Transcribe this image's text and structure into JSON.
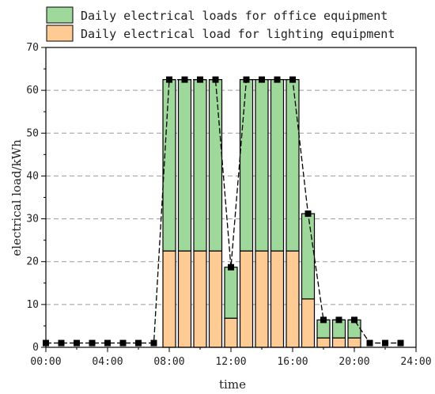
{
  "chart_data": {
    "type": "bar",
    "stacked": true,
    "title": "",
    "xlabel": "time",
    "ylabel": "electrical load/kWh",
    "xlim": [
      0,
      24
    ],
    "ylim": [
      0,
      70
    ],
    "x_ticks": [
      "00:00",
      "04:00",
      "08:00",
      "12:00",
      "16:00",
      "20:00",
      "24:00"
    ],
    "x_tick_values": [
      0,
      4,
      8,
      12,
      16,
      20,
      24
    ],
    "y_ticks": [
      0,
      10,
      20,
      30,
      40,
      50,
      60,
      70
    ],
    "grid": "horizontal dashed",
    "legend_position": "top-left, above plot",
    "x": [
      8,
      9,
      10,
      11,
      12,
      13,
      14,
      15,
      16,
      17,
      18,
      19,
      20
    ],
    "series": [
      {
        "name": "Daily electrical load for lighting equipment",
        "color": "#fdcb93",
        "values": [
          22.5,
          22.5,
          22.5,
          22.5,
          6.8,
          22.5,
          22.5,
          22.5,
          22.5,
          11.3,
          2.2,
          2.2,
          2.2
        ]
      },
      {
        "name": "Daily electrical loads for office equipment",
        "color": "#9fd89b",
        "values": [
          40.0,
          40.0,
          40.0,
          40.0,
          11.9,
          40.0,
          40.0,
          40.0,
          40.0,
          19.9,
          4.2,
          4.2,
          4.2
        ]
      }
    ],
    "total_line": {
      "x": [
        0,
        1,
        2,
        3,
        4,
        5,
        6,
        7,
        8,
        9,
        10,
        11,
        12,
        13,
        14,
        15,
        16,
        17,
        18,
        19,
        20,
        21,
        22,
        23
      ],
      "values": [
        1.0,
        1.0,
        1.0,
        1.0,
        1.0,
        1.0,
        1.0,
        1.0,
        62.5,
        62.5,
        62.5,
        62.5,
        18.7,
        62.5,
        62.5,
        62.5,
        62.5,
        31.2,
        6.4,
        6.4,
        6.4,
        1.0,
        1.0,
        1.0
      ],
      "color": "#000000"
    }
  }
}
